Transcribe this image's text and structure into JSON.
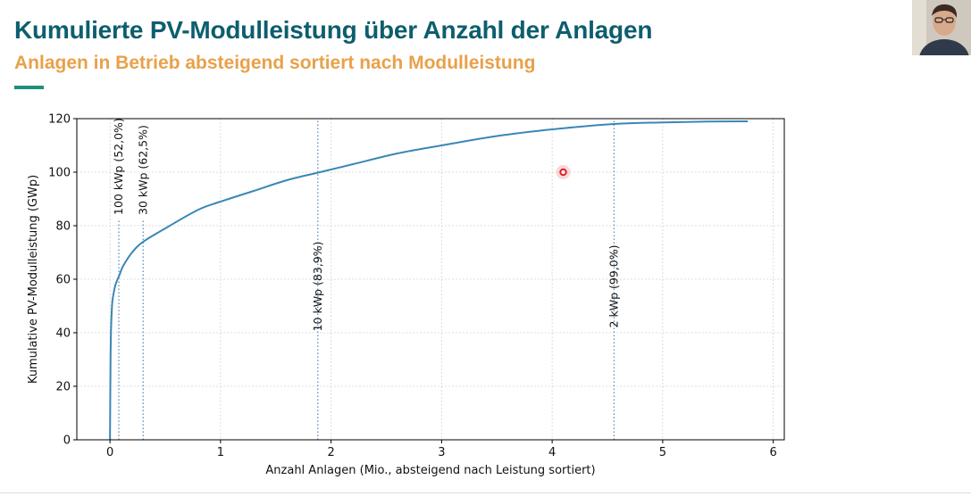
{
  "slide": {
    "title": "Kumulierte PV-Modulleistung über Anzahl der Anlagen",
    "subtitle": "Anlagen in Betrieb absteigend sortiert nach Modulleistung",
    "accent_color": "#1f8f7a"
  },
  "webcam": {
    "icon": "presenter-webcam-icon"
  },
  "chart_data": {
    "type": "line",
    "xlabel": "Anzahl Anlagen (Mio., absteigend nach Leistung sortiert)",
    "ylabel": "Kumulative PV-Modulleistung (GWp)",
    "xlim": [
      -0.3,
      6.1
    ],
    "ylim": [
      0,
      120
    ],
    "xticks": [
      0,
      1,
      2,
      3,
      4,
      5,
      6
    ],
    "yticks": [
      0,
      20,
      40,
      60,
      80,
      100,
      120
    ],
    "grid": true,
    "line_color": "#3a87b5",
    "series": [
      {
        "x": [
          0,
          0.005,
          0.01,
          0.02,
          0.03,
          0.05,
          0.08,
          0.12,
          0.2,
          0.3,
          0.5,
          0.8,
          1.0,
          1.3,
          1.6,
          1.9,
          2.2,
          2.6,
          3.0,
          3.5,
          4.0,
          4.56,
          5.0,
          5.4,
          5.77
        ],
        "y": [
          0,
          30,
          42,
          51,
          54,
          58,
          61,
          65,
          70,
          74,
          79,
          86,
          89,
          93,
          97,
          100,
          103,
          107,
          110,
          113.5,
          116,
          118,
          118.6,
          118.9,
          119
        ]
      }
    ],
    "markers": [
      {
        "x": 0.08,
        "label": "100 kWp (52,0%)",
        "y_top": 82
      },
      {
        "x": 0.3,
        "label": "30 kWp (62,5%)",
        "y_top": 82
      },
      {
        "x": 1.88,
        "label": "10 kWp (83,9%)",
        "y_top": 120
      },
      {
        "x": 4.56,
        "label": "2 kWp (99,0%)",
        "y_top": 120
      }
    ],
    "pointer": {
      "x": 4.1,
      "y": 100,
      "color": "#e0202a"
    }
  }
}
